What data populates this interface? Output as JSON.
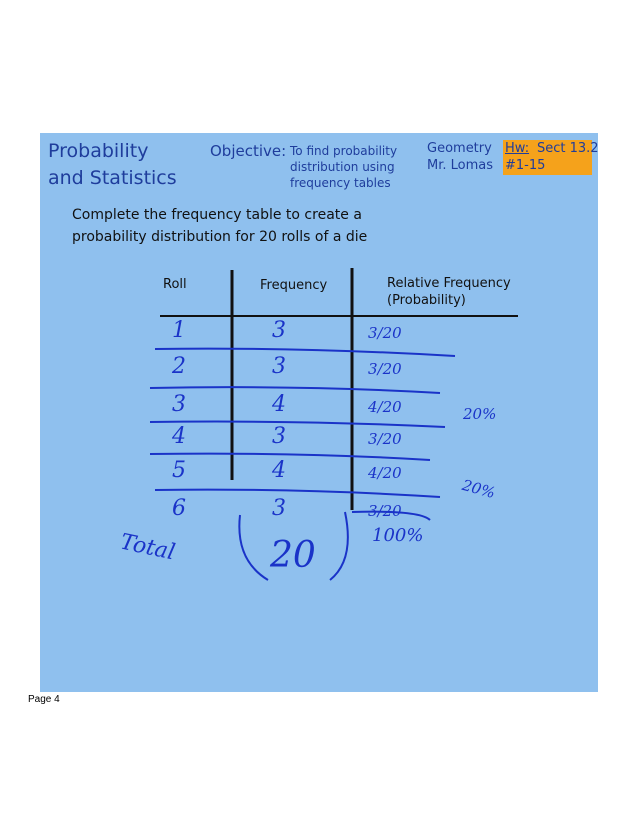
{
  "header": {
    "title": [
      "Probability",
      "and Statistics"
    ]
  },
  "objective": {
    "label": "Objective:",
    "text": [
      "To find probability",
      "distribution using",
      "frequency tables"
    ]
  },
  "course": [
    "Geometry",
    "Mr. Lomas"
  ],
  "homework": {
    "label": "Hw:",
    "text": "Sect 13.2",
    "problems": "#1-15"
  },
  "instructions": [
    "Complete the frequency table to create a",
    "probability distribution for 20 rolls of a die"
  ],
  "table": {
    "headers": [
      "Roll",
      "Frequency",
      "Relative Frequency",
      "(Probability)"
    ],
    "rows": [
      [
        "1",
        "3",
        "3/20"
      ],
      [
        "2",
        "3",
        "3/20"
      ],
      [
        "3",
        "4",
        "4/20"
      ],
      [
        "4",
        "3",
        "3/20"
      ],
      [
        "5",
        "4",
        "4/20"
      ],
      [
        "6",
        "3",
        "3/20"
      ]
    ]
  },
  "total": {
    "label": "Total",
    "value": "20",
    "percent": "100%"
  },
  "notes": [
    "20%",
    "20%"
  ],
  "footer": "Page 4"
}
